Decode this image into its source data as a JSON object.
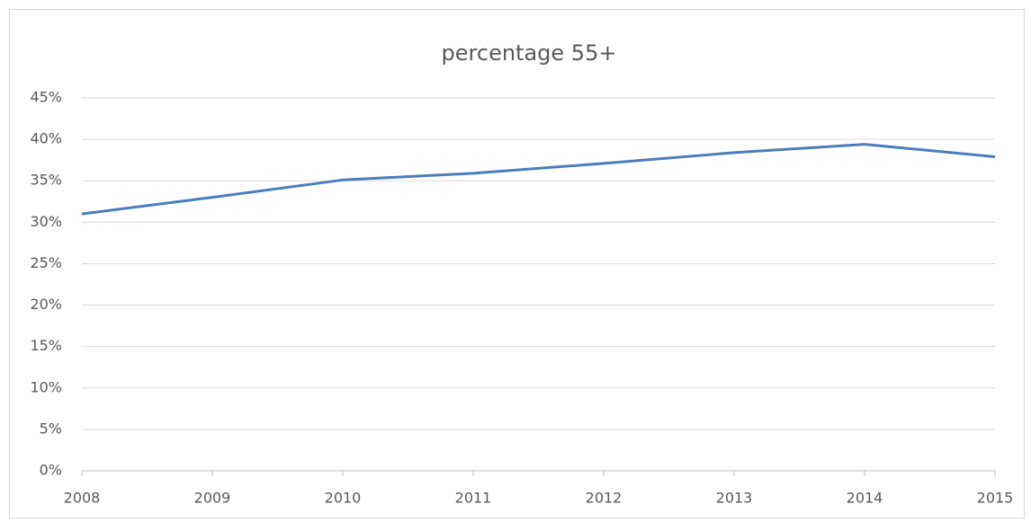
{
  "chart_data": {
    "type": "line",
    "title": "percentage 55+",
    "x": [
      2008,
      2009,
      2010,
      2011,
      2012,
      2013,
      2014,
      2015
    ],
    "series": [
      {
        "name": "percentage 55+",
        "color": "#4a7ebb",
        "values": [
          31,
          33,
          35.1,
          35.9,
          37.1,
          38.4,
          39.4,
          37.9
        ]
      }
    ],
    "xlim": [
      2008,
      2015
    ],
    "xticks": [
      2008,
      2009,
      2010,
      2011,
      2012,
      2013,
      2014,
      2015
    ],
    "ylim": [
      0,
      45
    ],
    "yticks": [
      {
        "value": 0,
        "label": "0%"
      },
      {
        "value": 5,
        "label": "5%"
      },
      {
        "value": 10,
        "label": "10%"
      },
      {
        "value": 15,
        "label": "15%"
      },
      {
        "value": 20,
        "label": "20%"
      },
      {
        "value": 25,
        "label": "25%"
      },
      {
        "value": 30,
        "label": "30%"
      },
      {
        "value": 35,
        "label": "35%"
      },
      {
        "value": 40,
        "label": "40%"
      },
      {
        "value": 45,
        "label": "45%"
      }
    ],
    "grid": true
  }
}
